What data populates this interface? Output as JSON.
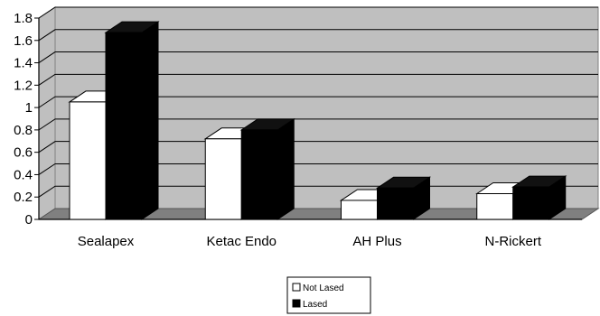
{
  "chart_data": {
    "type": "bar",
    "categories": [
      "Sealapex",
      "Ketac Endo",
      "AH Plus",
      "N-Rickert"
    ],
    "series": [
      {
        "name": "Not Lased",
        "values": [
          1.05,
          0.72,
          0.17,
          0.23
        ],
        "color": "#ffffff"
      },
      {
        "name": "Lased",
        "values": [
          1.67,
          0.8,
          0.28,
          0.29
        ],
        "color": "#000000"
      }
    ],
    "ylim": [
      0,
      1.8
    ],
    "yticks": [
      "0",
      "0.2",
      "0.4",
      "0.6",
      "0.8",
      "1",
      "1.2",
      "1.4",
      "1.6",
      "1.8"
    ],
    "grid": true,
    "style": "3d",
    "plot_background": "#bfbfbf",
    "floor_color": "#808080",
    "legend_position": "bottom"
  }
}
